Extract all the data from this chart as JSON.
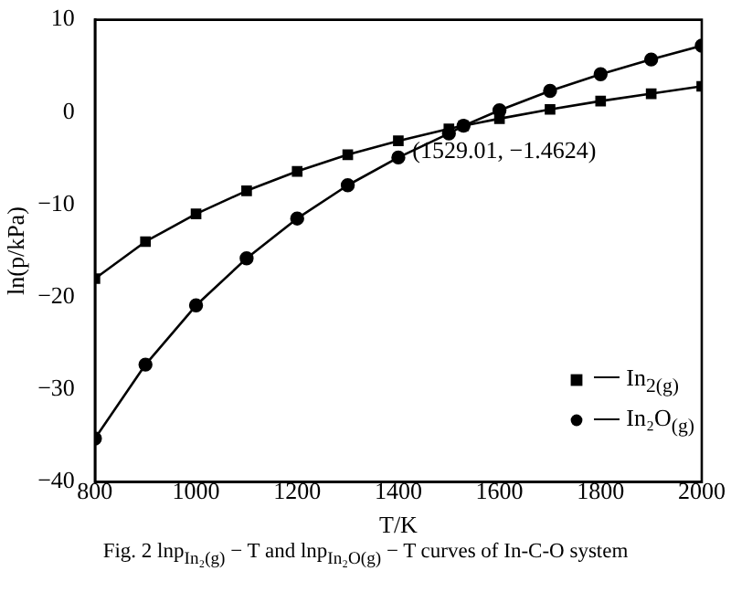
{
  "chart_data": {
    "type": "line",
    "title": "Fig. 2  lnp$_{In₂(g)}$ − T and lnp$_{In₂O(g)}$ − T curves of In-C-O system",
    "xlabel": "T/K",
    "ylabel": "ln(p/kPa)",
    "xlim": [
      800,
      2000
    ],
    "xticks": [
      800,
      1000,
      1200,
      1400,
      1600,
      1800,
      2000
    ],
    "ylim": [
      -40,
      10
    ],
    "yticks": [
      -40,
      -30,
      -20,
      -10,
      0,
      10
    ],
    "grid": false,
    "legend": "bottom right",
    "line_style": "solid",
    "annotations": [
      {
        "text": "(1529.01, −1.4624)",
        "x": 1529.01,
        "y": -1.4624
      }
    ],
    "series": [
      {
        "name": "In$_{2(g)}$",
        "color": "#000000",
        "marker": "square",
        "x": [
          800,
          900,
          1000,
          1100,
          1200,
          1300,
          1400,
          1500,
          1529.01,
          1600,
          1700,
          1800,
          1900,
          2000
        ],
        "values": [
          -18,
          -14,
          -11,
          -8.5,
          -6.4,
          -4.6,
          -3.1,
          -1.8,
          -1.4624,
          -0.7,
          0.3,
          1.2,
          2,
          2.8
        ]
      },
      {
        "name": "In₂O$_{(g)}$",
        "color": "#000000",
        "marker": "circle",
        "x": [
          800,
          900,
          1000,
          1100,
          1200,
          1300,
          1400,
          1500,
          1529.01,
          1600,
          1700,
          1800,
          1900,
          2000
        ],
        "values": [
          -35.3,
          -27.3,
          -20.9,
          -15.8,
          -11.5,
          -7.9,
          -4.9,
          -2.3,
          -1.4624,
          0.2,
          2.3,
          4.1,
          5.7,
          7.2
        ]
      }
    ]
  }
}
